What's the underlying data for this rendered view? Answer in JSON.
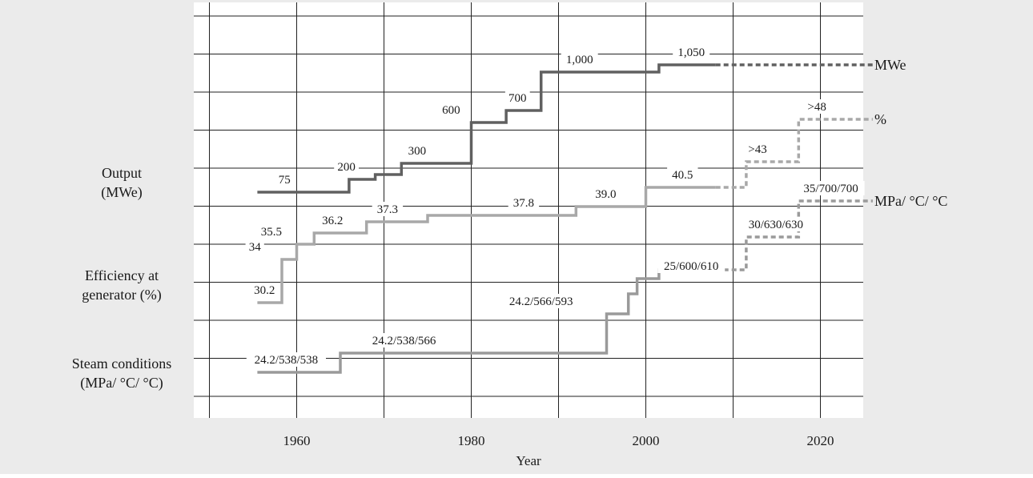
{
  "chart_data": {
    "type": "line",
    "title": "",
    "xlabel": "Year",
    "xlim": [
      1948,
      2026
    ],
    "xticks": [
      1960,
      1980,
      2000,
      2020
    ],
    "grid": true,
    "row_labels": [
      {
        "id": "output",
        "lines": [
          "Output",
          "(MWe)"
        ]
      },
      {
        "id": "efficiency",
        "lines": [
          "Efficiency at",
          "generator (%)"
        ]
      },
      {
        "id": "steam",
        "lines": [
          "Steam conditions",
          "(MPa/ °C/ °C)"
        ]
      }
    ],
    "series": [
      {
        "name": "MWe",
        "style": "step",
        "color": "#606060",
        "steps": [
          {
            "from": 1955.5,
            "to": 1966,
            "value": 75
          },
          {
            "from": 1966,
            "to": 1969,
            "value": 200
          },
          {
            "from": 1969,
            "to": 1972,
            "value": 250
          },
          {
            "from": 1972,
            "to": 1980,
            "value": 300
          },
          {
            "from": 1980,
            "to": 1984,
            "value": 600
          },
          {
            "from": 1984,
            "to": 1988,
            "value": 700
          },
          {
            "from": 1988,
            "to": 2001.5,
            "value": 1000
          },
          {
            "from": 2001.5,
            "to": 2008,
            "value": 1050
          }
        ],
        "projected": [
          {
            "from": 2008,
            "to": 2026,
            "value": 1050
          }
        ],
        "point_labels": [
          {
            "text": "75",
            "x": 1958.6,
            "value": 75
          },
          {
            "text": "200",
            "x": 1965.7,
            "value": 200
          },
          {
            "text": "300",
            "x": 1973.8,
            "value": 300
          },
          {
            "text": "600",
            "x": 1977.7,
            "value": 600
          },
          {
            "text": "700",
            "x": 1985.3,
            "value": 700
          },
          {
            "text": "1,000",
            "x": 1992.4,
            "value": 1000
          },
          {
            "text": "1,050",
            "x": 2005.2,
            "value": 1050
          }
        ]
      },
      {
        "name": "%",
        "style": "step",
        "color": "#a8a8a8",
        "steps": [
          {
            "from": 1955.5,
            "to": 1958.3,
            "value": 30.2
          },
          {
            "from": 1958.3,
            "to": 1960,
            "value": 34
          },
          {
            "from": 1960,
            "to": 1962,
            "value": 35.5
          },
          {
            "from": 1962,
            "to": 1968,
            "value": 36.2
          },
          {
            "from": 1968,
            "to": 1975,
            "value": 37.3
          },
          {
            "from": 1975,
            "to": 1992,
            "value": 37.8
          },
          {
            "from": 1992,
            "to": 2000,
            "value": 39.0
          },
          {
            "from": 2000,
            "to": 2008,
            "value": 40.5
          }
        ],
        "projected": [
          {
            "from": 2008,
            "to": 2011.5,
            "value": 40.5
          },
          {
            "from": 2011.5,
            "to": 2017.5,
            "value": 43
          },
          {
            "from": 2017.5,
            "to": 2026,
            "value": 48
          }
        ],
        "point_labels": [
          {
            "text": "30.2",
            "x": 1956.3,
            "value": 30.2
          },
          {
            "text": "34",
            "x": 1955.2,
            "value": 34
          },
          {
            "text": "35.5",
            "x": 1957.1,
            "value": 35.5
          },
          {
            "text": "36.2",
            "x": 1964.1,
            "value": 36.2
          },
          {
            "text": "37.3",
            "x": 1970.4,
            "value": 37.3
          },
          {
            "text": "37.8",
            "x": 1986.0,
            "value": 37.8
          },
          {
            "text": "39.0",
            "x": 1995.4,
            "value": 39.0
          },
          {
            "text": "40.5",
            "x": 2004.2,
            "value": 40.5
          },
          {
            "text": ">43",
            "x": 2012.8,
            "value": 43
          },
          {
            "text": ">48",
            "x": 2019.6,
            "value": 48
          }
        ]
      },
      {
        "name": "MPa/ °C/ °C",
        "style": "step",
        "color": "#9a9a9a",
        "steps": [
          {
            "from": 1955.5,
            "to": 1965,
            "value": 538
          },
          {
            "from": 1965,
            "to": 1995.5,
            "value": 566
          },
          {
            "from": 1995.5,
            "to": 1998,
            "value": 593
          },
          {
            "from": 1998,
            "to": 1999,
            "value": 600
          },
          {
            "from": 1999,
            "to": 2001.5,
            "value": 610
          },
          {
            "from": 2001.5,
            "to": 2008,
            "value": 620
          }
        ],
        "projected": [
          {
            "from": 2008,
            "to": 2011.5,
            "value": 620
          },
          {
            "from": 2011.5,
            "to": 2017.5,
            "value": 630
          },
          {
            "from": 2017.5,
            "to": 2026,
            "value": 700
          }
        ],
        "point_labels": [
          {
            "text": "24.2/538/538",
            "x": 1958.8,
            "value": 538
          },
          {
            "text": "24.2/538/566",
            "x": 1972.3,
            "value": 566
          },
          {
            "text": "24.2/566/593",
            "x": 1988.0,
            "value": 593
          },
          {
            "text": "25/600/610",
            "x": 2005.2,
            "value": 610
          },
          {
            "text": "30/630/630",
            "x": 2014.9,
            "value": 630
          },
          {
            "text": "35/700/700",
            "x": 2021.2,
            "value": 700
          }
        ]
      }
    ]
  }
}
